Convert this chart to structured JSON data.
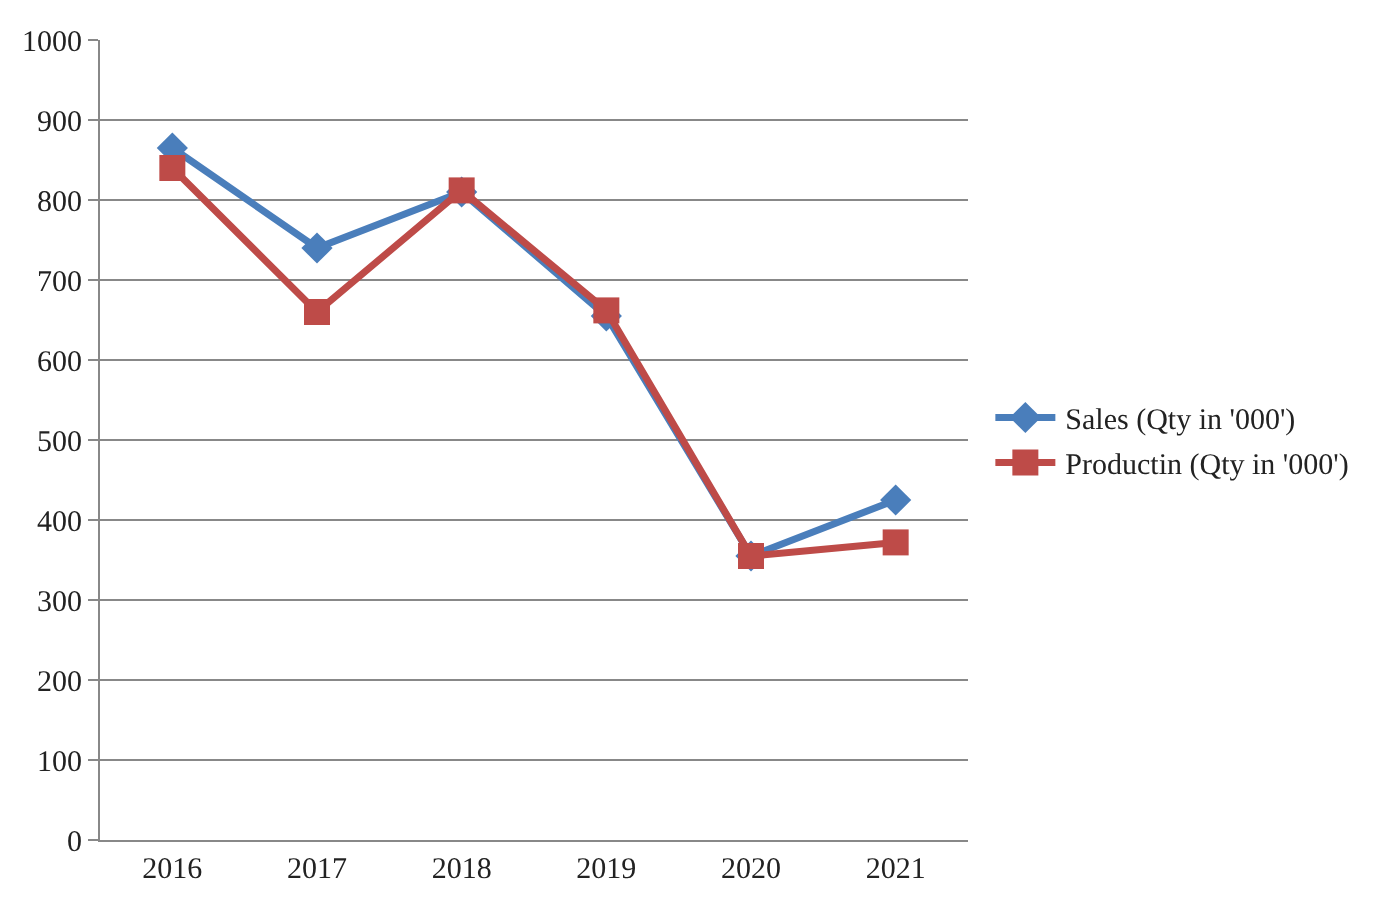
{
  "chart_data": {
    "type": "line",
    "categories": [
      "2016",
      "2017",
      "2018",
      "2019",
      "2020",
      "2021"
    ],
    "series": [
      {
        "name": "Sales (Qty in '000')",
        "color": "#4a7ebb",
        "marker": "diamond",
        "values": [
          865,
          740,
          810,
          655,
          355,
          425
        ]
      },
      {
        "name": "Productin (Qty in '000')",
        "color": "#be4b48",
        "marker": "square",
        "values": [
          840,
          660,
          812,
          662,
          355,
          372
        ]
      }
    ],
    "ylim": [
      0,
      1000
    ],
    "yticks": [
      0,
      100,
      200,
      300,
      400,
      500,
      600,
      700,
      800,
      900,
      1000
    ],
    "grid": "y",
    "legend": "right"
  }
}
